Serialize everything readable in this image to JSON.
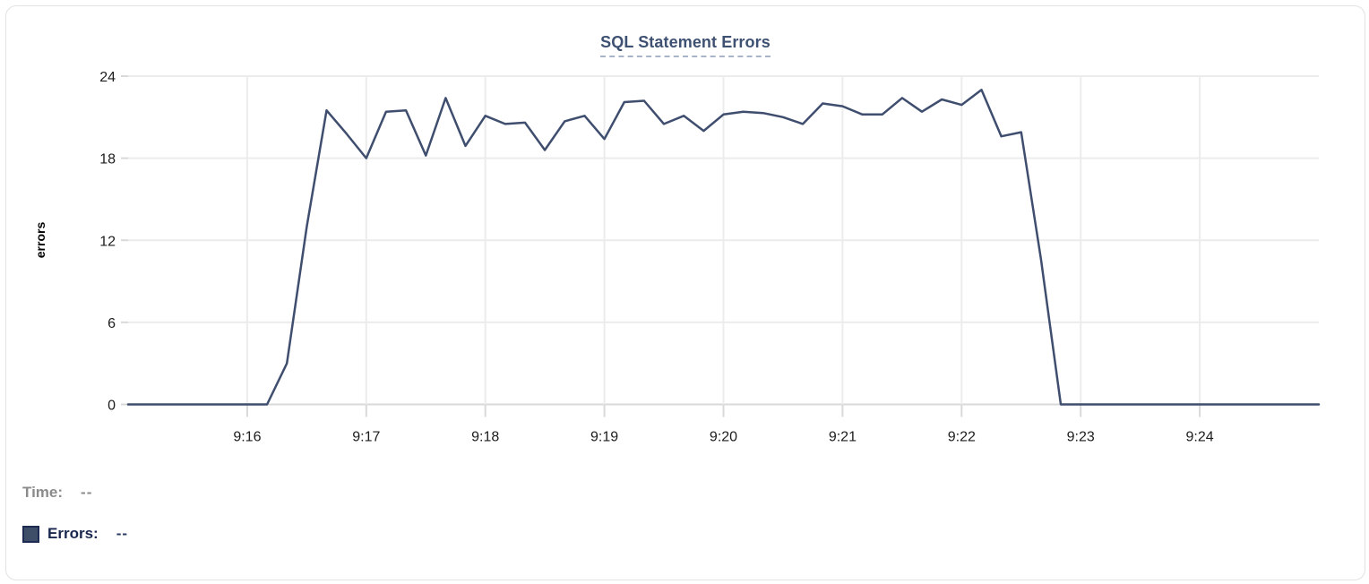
{
  "chart": {
    "title": "SQL Statement Errors"
  },
  "chart_data": {
    "type": "line",
    "title": "SQL Statement Errors",
    "xlabel": "",
    "ylabel": "errors",
    "ylim": [
      0,
      24
    ],
    "yticks": [
      0,
      6,
      12,
      18,
      24
    ],
    "xticks": [
      {
        "label": "9:16",
        "min": 1
      },
      {
        "label": "9:17",
        "min": 2
      },
      {
        "label": "9:18",
        "min": 3
      },
      {
        "label": "9:19",
        "min": 4
      },
      {
        "label": "9:20",
        "min": 5
      },
      {
        "label": "9:21",
        "min": 6
      },
      {
        "label": "9:22",
        "min": 7
      },
      {
        "label": "9:23",
        "min": 8
      },
      {
        "label": "9:24",
        "min": 9
      }
    ],
    "x_range": [
      "9:15:00",
      "9:25:00"
    ],
    "grid": true,
    "legend_position": "bottom-left",
    "colors": {
      "line": "#3f4e6e",
      "grid": "#ececec",
      "zero_line": "#d9d9d9",
      "tick_mark": "#d9d9d9",
      "tick_label": "#1c1c1c",
      "axis_title": "#000000"
    },
    "series": [
      {
        "name": "Errors",
        "color": "#3f4e6e",
        "times": [
          "9:15:00",
          "9:15:10",
          "9:15:20",
          "9:15:30",
          "9:15:40",
          "9:15:50",
          "9:16:00",
          "9:16:10",
          "9:16:20",
          "9:16:30",
          "9:16:40",
          "9:16:50",
          "9:17:00",
          "9:17:10",
          "9:17:20",
          "9:17:30",
          "9:17:40",
          "9:17:50",
          "9:18:00",
          "9:18:10",
          "9:18:20",
          "9:18:30",
          "9:18:40",
          "9:18:50",
          "9:19:00",
          "9:19:10",
          "9:19:20",
          "9:19:30",
          "9:19:40",
          "9:19:50",
          "9:20:00",
          "9:20:10",
          "9:20:20",
          "9:20:30",
          "9:20:40",
          "9:20:50",
          "9:21:00",
          "9:21:10",
          "9:21:20",
          "9:21:30",
          "9:21:40",
          "9:21:50",
          "9:22:00",
          "9:22:10",
          "9:22:20",
          "9:22:30",
          "9:22:40",
          "9:22:50",
          "9:23:00",
          "9:23:10",
          "9:23:20",
          "9:23:30",
          "9:23:40",
          "9:23:50",
          "9:24:00",
          "9:24:10",
          "9:24:20",
          "9:24:30",
          "9:24:40",
          "9:24:50",
          "9:25:00"
        ],
        "values": [
          0,
          0,
          0,
          0,
          0,
          0,
          0,
          0,
          3,
          13,
          21.5,
          19.8,
          18,
          21.4,
          21.5,
          18.2,
          22.4,
          18.9,
          21.1,
          20.5,
          20.6,
          18.6,
          20.7,
          21.1,
          19.4,
          22.1,
          22.2,
          20.5,
          21.1,
          20,
          21.2,
          21.4,
          21.3,
          21,
          20.5,
          22,
          21.8,
          21.2,
          21.2,
          22.4,
          21.4,
          22.3,
          21.9,
          23,
          19.6,
          19.9,
          10.6,
          0,
          0,
          0,
          0,
          0,
          0,
          0,
          0,
          0,
          0,
          0,
          0,
          0,
          0
        ]
      }
    ]
  },
  "legend": {
    "time_label": "Time:",
    "time_value": "--",
    "errors_label": "Errors:",
    "errors_value": "--",
    "swatch_color": "#3e4d68"
  }
}
